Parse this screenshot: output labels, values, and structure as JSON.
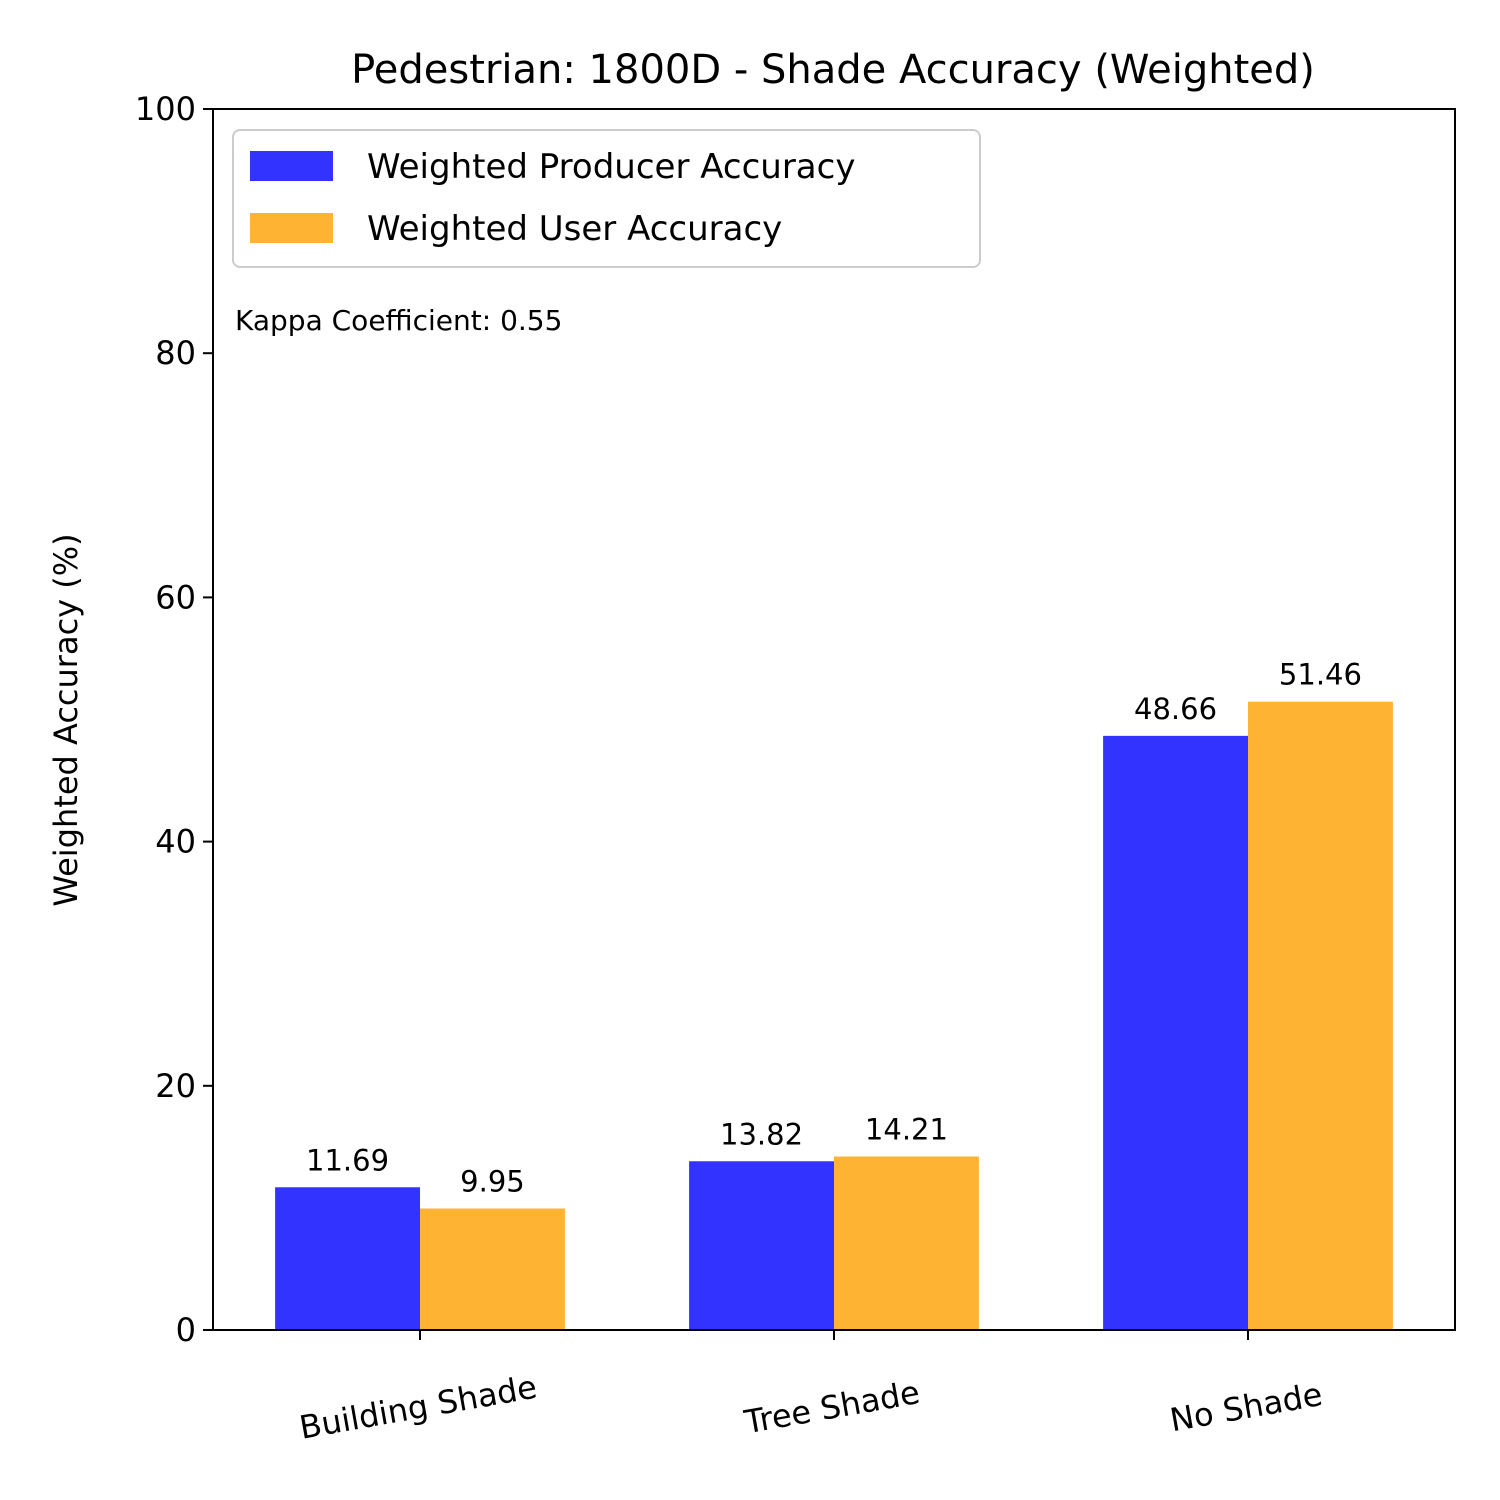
{
  "chart_data": {
    "type": "bar",
    "title": "Pedestrian: 1800D - Shade Accuracy (Weighted)",
    "xlabel": "",
    "ylabel": "Weighted Accuracy (%)",
    "ylim": [
      0,
      100
    ],
    "yticks": [
      0,
      20,
      40,
      60,
      80,
      100
    ],
    "categories": [
      "Building Shade",
      "Tree Shade",
      "No Shade"
    ],
    "series": [
      {
        "name": "Weighted Producer Accuracy",
        "color": "#3333ff",
        "values": [
          11.69,
          13.82,
          48.66
        ],
        "labels": [
          "11.69",
          "13.82",
          "48.66"
        ]
      },
      {
        "name": "Weighted User Accuracy",
        "color": "#ffb333",
        "values": [
          9.95,
          14.21,
          51.46
        ],
        "labels": [
          "9.95",
          "14.21",
          "51.46"
        ]
      }
    ],
    "legend": "top-left",
    "grid": false,
    "annotation": "Kappa Coefficient: 0.55"
  }
}
